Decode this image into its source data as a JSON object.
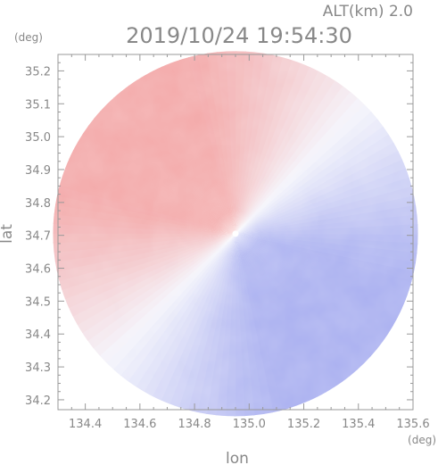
{
  "header": {
    "altitude_label": "ALT(km) 2.0",
    "timestamp": "2019/10/24 19:54:30"
  },
  "chart_data": {
    "type": "heatmap",
    "title": "2019/10/24 19:54:30",
    "subtitle": "ALT(km) 2.0",
    "xlabel": "lon",
    "ylabel": "lat",
    "x_unit": "(deg)",
    "y_unit": "(deg)",
    "xlim": [
      134.3,
      135.6
    ],
    "ylim": [
      34.17,
      35.25
    ],
    "x_ticks": [
      134.4,
      134.6,
      134.8,
      135.0,
      135.2,
      135.4,
      135.6
    ],
    "x_tick_labels": [
      "134.4",
      "134.6",
      "134.8",
      "135.0",
      "135.2",
      "135.4",
      "135.6"
    ],
    "y_ticks": [
      34.2,
      34.3,
      34.4,
      34.5,
      34.6,
      34.7,
      34.8,
      34.9,
      35.0,
      35.1,
      35.2
    ],
    "y_tick_labels": [
      "34.2",
      "34.3",
      "34.4",
      "34.5",
      "34.6",
      "34.7",
      "34.8",
      "34.9",
      "35.0",
      "35.1",
      "35.2"
    ],
    "radar_center": {
      "lon": 134.95,
      "lat": 34.705
    },
    "radar_range_deg_lat": 0.555,
    "grid": false,
    "colors": {
      "positive": "#f3a9a9",
      "negative": "#aab0f0",
      "neutral": "#f4f4fb",
      "frame": "#999999",
      "text": "#888888"
    }
  }
}
